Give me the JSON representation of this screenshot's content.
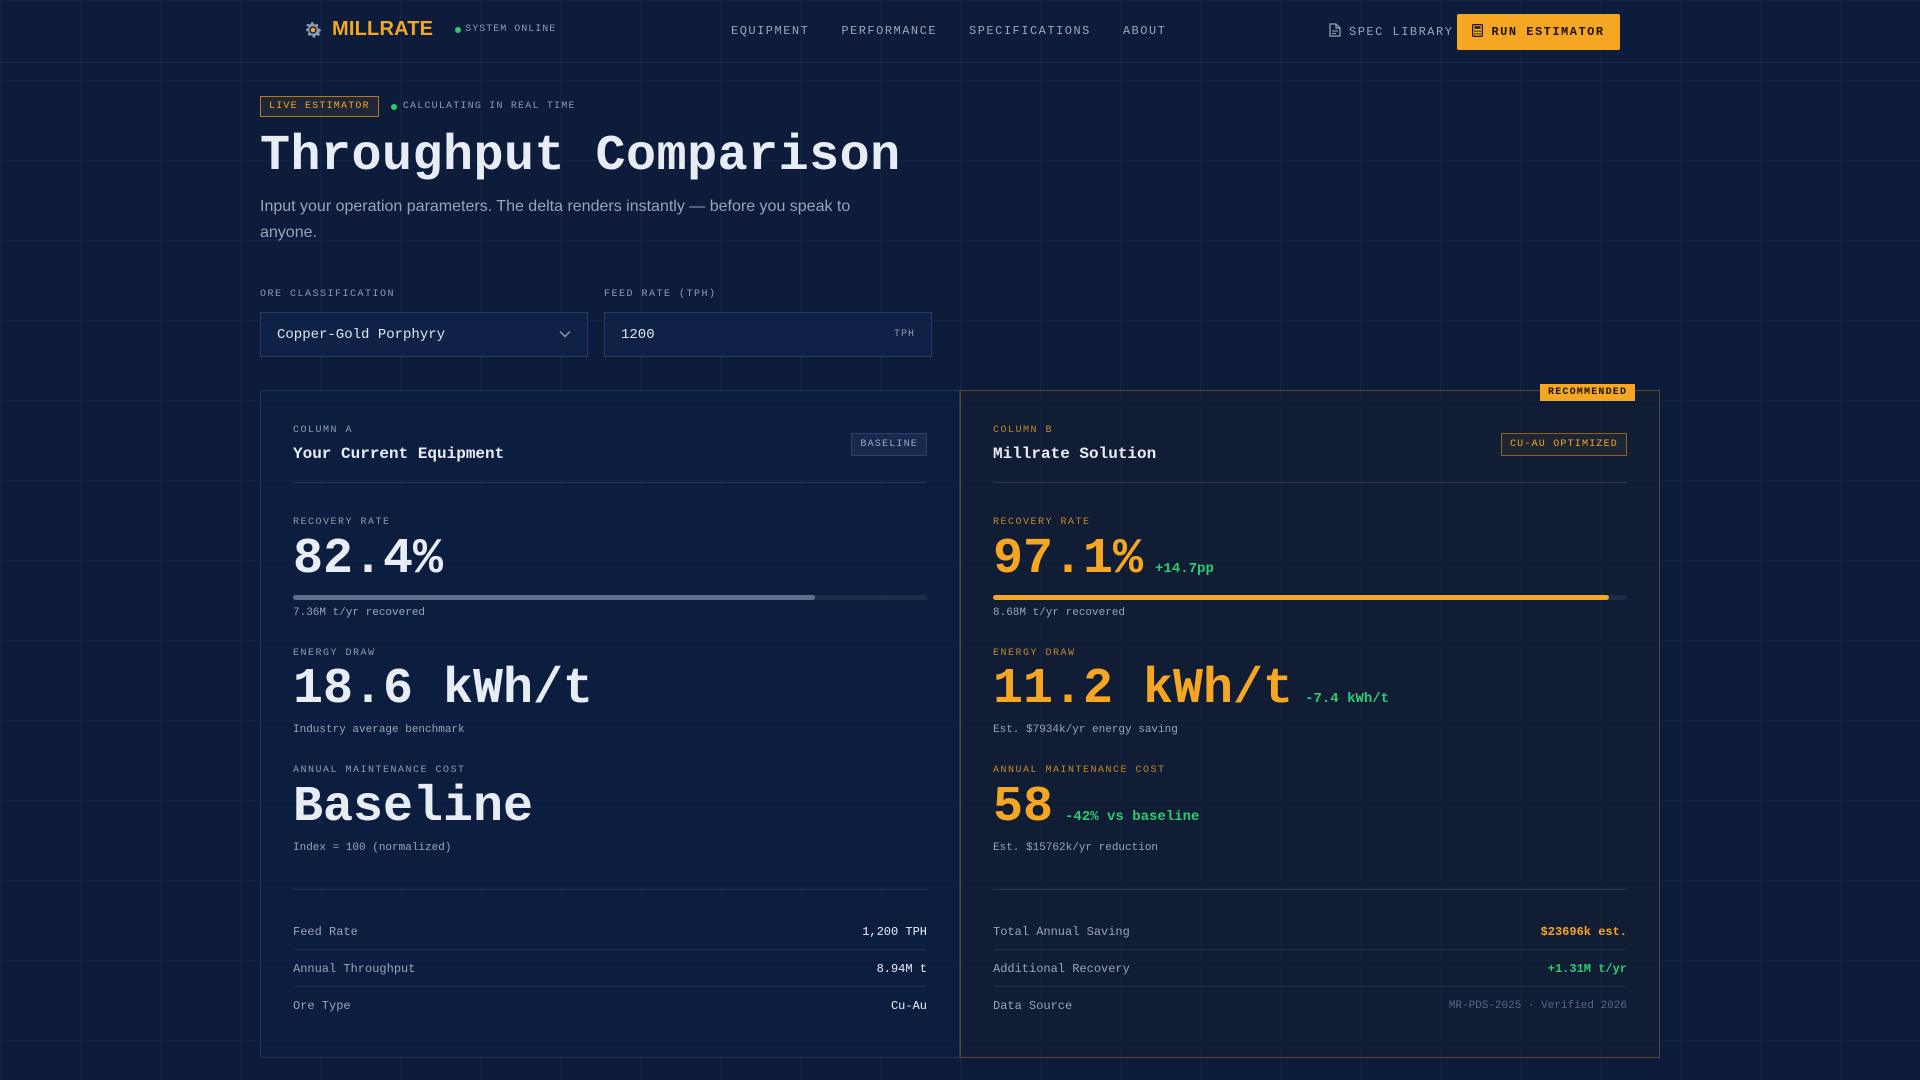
{
  "nav": {
    "brand": "MILLRATE",
    "brand_icon": "gear-icon",
    "status": "SYSTEM ONLINE",
    "menu": [
      "EQUIPMENT",
      "PERFORMANCE",
      "SPECIFICATIONS",
      "ABOUT"
    ],
    "spec_library": "SPEC LIBRARY",
    "run_estimator": "RUN ESTIMATOR"
  },
  "header": {
    "badge": "LIVE ESTIMATOR",
    "calc_status": "CALCULATING IN REAL TIME",
    "title": "Throughput Comparison",
    "subtitle": "Input your operation parameters. The delta renders instantly — before you speak to anyone."
  },
  "inputs": {
    "ore_label": "ORE CLASSIFICATION",
    "ore_value": "Copper-Gold Porphyry",
    "feed_label": "FEED RATE (TPH)",
    "feed_value": "1200",
    "feed_unit": "TPH"
  },
  "column_a": {
    "label": "COLUMN A",
    "title": "Your Current Equipment",
    "badge": "BASELINE",
    "recovery_label": "RECOVERY RATE",
    "recovery_value": "82.4%",
    "recovery_fraction": 0.824,
    "recovery_sub": "7.36M t/yr recovered",
    "energy_label": "ENERGY DRAW",
    "energy_value": "18.6 kWh/t",
    "energy_sub": "Industry average benchmark",
    "maint_label": "ANNUAL MAINTENANCE COST",
    "maint_value": "Baseline",
    "maint_sub": "Index = 100 (normalized)",
    "rows": [
      {
        "k": "Feed Rate",
        "v": "1,200 TPH"
      },
      {
        "k": "Annual Throughput",
        "v": "8.94M t"
      },
      {
        "k": "Ore Type",
        "v": "Cu-Au"
      }
    ]
  },
  "column_b": {
    "recommended": "RECOMMENDED",
    "label": "COLUMN B",
    "title": "Millrate Solution",
    "badge": "CU-AU OPTIMIZED",
    "recovery_label": "RECOVERY RATE",
    "recovery_value": "97.1%",
    "recovery_delta": "+14.7pp",
    "recovery_fraction": 0.971,
    "recovery_sub": "8.68M t/yr recovered",
    "energy_label": "ENERGY DRAW",
    "energy_value": "11.2 kWh/t",
    "energy_delta": "-7.4 kWh/t",
    "energy_sub": "Est. $7934k/yr energy saving",
    "maint_label": "ANNUAL MAINTENANCE COST",
    "maint_value": "58",
    "maint_delta": "-42% vs baseline",
    "maint_sub": "Est. $15762k/yr reduction",
    "rows": [
      {
        "k": "Total Annual Saving",
        "v": "$23696k est."
      },
      {
        "k": "Additional Recovery",
        "v": "+1.31M t/yr"
      },
      {
        "k": "Data Source",
        "v": "MR-PDS-2025 · Verified 2026"
      }
    ]
  },
  "colors": {
    "accent": "#f5a623",
    "positive": "#2ecc71",
    "background": "#0c1c3a"
  }
}
